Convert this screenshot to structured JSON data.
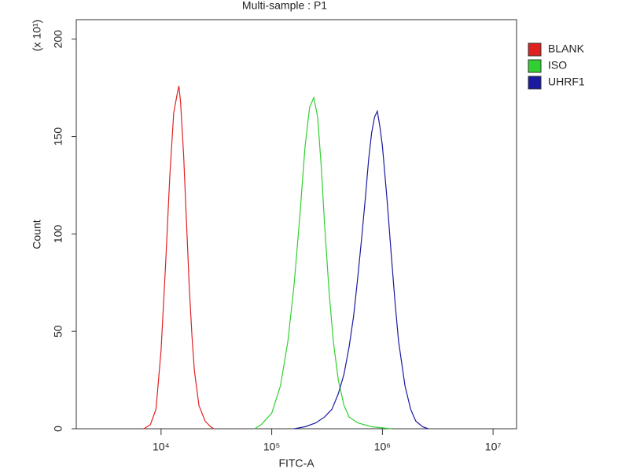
{
  "chart_data": {
    "type": "line",
    "title": "Multi-sample : P1",
    "x_label": "FITC-A",
    "y_label": "Count",
    "y_multiplier": "(x 10¹)",
    "x_log": true,
    "xlim": [
      1714,
      16300000
    ],
    "xticks": [
      {
        "value": 10000,
        "label": "10⁴"
      },
      {
        "value": 100000,
        "label": "10⁵"
      },
      {
        "value": 1000000,
        "label": "10⁶"
      },
      {
        "value": 10000000,
        "label": "10⁷"
      }
    ],
    "ylim": [
      0,
      210
    ],
    "yticks": [
      0,
      50,
      100,
      150,
      200
    ],
    "legend": "right",
    "series": [
      {
        "name": "BLANK",
        "color": "#e02020",
        "x": [
          7000,
          8000,
          9000,
          10000,
          11000,
          12000,
          13000,
          14000,
          14500,
          15000,
          16000,
          17000,
          18000,
          19000,
          20000,
          22000,
          25000,
          28000,
          30000
        ],
        "values": [
          0,
          2,
          10,
          40,
          85,
          130,
          162,
          172,
          176,
          168,
          140,
          105,
          72,
          48,
          30,
          12,
          4,
          1,
          0
        ]
      },
      {
        "name": "ISO",
        "color": "#30d030",
        "x": [
          70000,
          80000,
          100000,
          120000,
          140000,
          160000,
          180000,
          200000,
          220000,
          240000,
          260000,
          280000,
          300000,
          330000,
          360000,
          400000,
          450000,
          500000,
          600000,
          800000,
          1200000
        ],
        "values": [
          0,
          2,
          8,
          22,
          45,
          75,
          110,
          145,
          165,
          170,
          160,
          135,
          105,
          70,
          45,
          25,
          12,
          6,
          3,
          1,
          0
        ]
      },
      {
        "name": "UHRF1",
        "color": "#1a1aa0",
        "x": [
          160000,
          200000,
          250000,
          300000,
          350000,
          400000,
          450000,
          500000,
          550000,
          600000,
          650000,
          700000,
          750000,
          800000,
          850000,
          900000,
          950000,
          1000000,
          1100000,
          1200000,
          1300000,
          1400000,
          1600000,
          1800000,
          2000000,
          2300000,
          2600000
        ],
        "values": [
          0,
          1,
          3,
          6,
          10,
          18,
          28,
          42,
          58,
          78,
          98,
          118,
          138,
          152,
          160,
          163,
          155,
          145,
          118,
          90,
          65,
          45,
          22,
          10,
          4,
          1,
          0
        ]
      }
    ]
  }
}
